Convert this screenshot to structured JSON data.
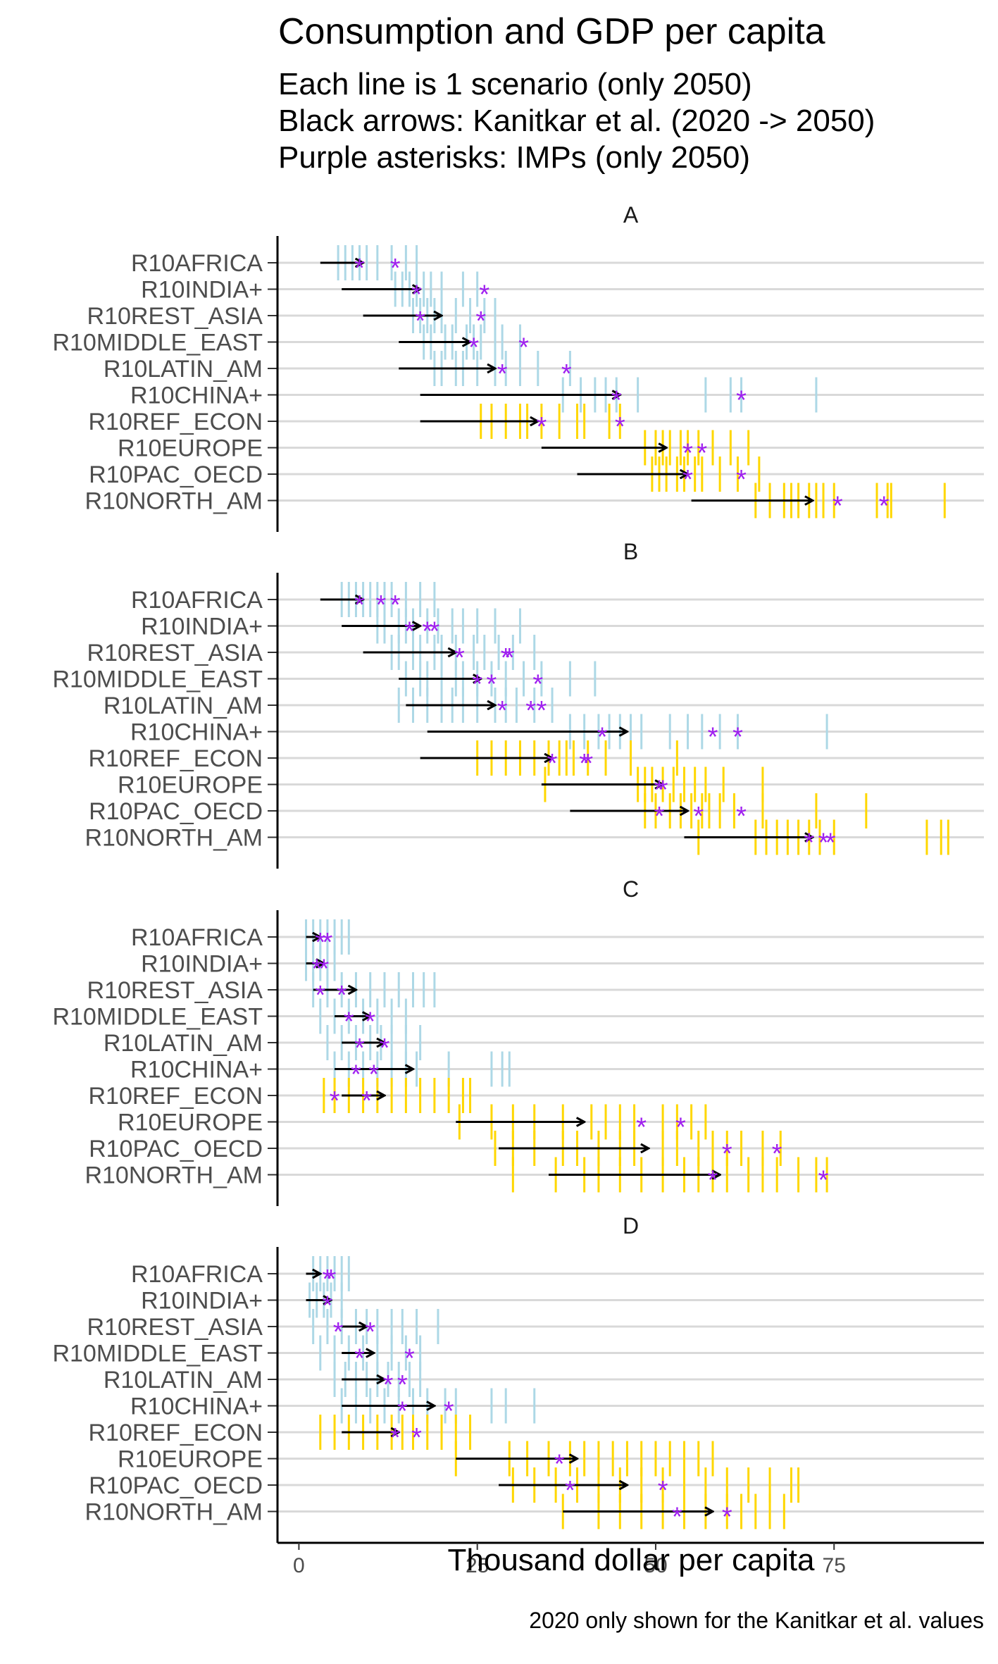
{
  "chart_data": {
    "type": "faceted_range_plot",
    "title": "Consumption and GDP per capita",
    "subtitle_lines": [
      "Each line is 1 scenario (only 2050)",
      "Black arrows: Kanitkar et al. (2020 -> 2050)",
      "Purple asterisks: IMPs (only 2050)"
    ],
    "xlabel": "Thousand dollar per capita",
    "caption": "2020 only shown for the Kanitkar et al. values",
    "xlim": [
      -3,
      96
    ],
    "xticks": [
      0,
      25,
      50,
      75
    ],
    "grid": "horizontal",
    "colors": {
      "non_oecd": "#add8e6",
      "oecd_ref": "#ffd700",
      "arrow": "#000000",
      "imp": "#a020f0",
      "gridline": "#d9d9d9"
    },
    "regions": [
      "R10AFRICA",
      "R10INDIA+",
      "R10REST_ASIA",
      "R10MIDDLE_EAST",
      "R10LATIN_AM",
      "R10CHINA+",
      "R10REF_ECON",
      "R10EUROPE",
      "R10PAC_OECD",
      "R10NORTH_AM"
    ],
    "region_color_group": [
      "non_oecd",
      "non_oecd",
      "non_oecd",
      "non_oecd",
      "non_oecd",
      "non_oecd",
      "oecd_ref",
      "oecd_ref",
      "oecd_ref",
      "oecd_ref"
    ],
    "panels": [
      {
        "label": "A",
        "scenarios": [
          [
            5.5,
            6.5,
            7.5,
            8.5,
            9.5,
            11,
            13,
            15,
            16.5
          ],
          [
            13.5,
            14.5,
            15.5,
            16.5,
            17.5,
            18.5,
            20,
            23,
            25
          ],
          [
            16,
            17,
            18,
            19,
            20,
            22,
            24,
            26,
            27.5
          ],
          [
            17.5,
            18.5,
            20.5,
            21.5,
            23.5,
            24.5,
            25.5,
            27.5,
            28.5,
            31
          ],
          [
            19,
            20,
            22,
            23,
            25,
            27.5,
            29,
            31,
            33.5,
            38
          ],
          [
            37,
            39.5,
            41.5,
            43,
            44.5,
            47.5,
            57,
            60.5,
            62,
            72.5
          ],
          [
            25.5,
            27,
            29,
            31,
            32,
            34,
            36.5,
            39,
            40,
            43.5,
            45
          ],
          [
            48.5,
            50,
            51,
            52,
            53.5,
            54.5,
            56,
            58,
            60.5,
            63
          ],
          [
            49.5,
            50.5,
            51.5,
            53,
            54,
            55.5,
            56.5,
            59,
            61.5,
            64.5
          ],
          [
            64,
            66,
            68,
            69,
            70,
            71.5,
            72.5,
            73.5,
            75,
            81,
            82.5,
            83,
            90.5
          ]
        ],
        "kanitkar_2020": [
          3,
          6,
          9,
          14,
          14,
          17,
          17,
          34,
          39,
          55
        ],
        "kanitkar_2050": [
          9,
          17,
          20,
          24,
          27.5,
          45,
          33.5,
          51.5,
          54.5,
          72
        ],
        "imps": [
          [
            8.5,
            13.5
          ],
          [
            16.5,
            26
          ],
          [
            17,
            25.5
          ],
          [
            24.5,
            31.5
          ],
          [
            28.5,
            37.5
          ],
          [
            44.5,
            62
          ],
          [
            34,
            45
          ],
          [
            54.5,
            56.5
          ],
          [
            54.5,
            62
          ],
          [
            75.5,
            82
          ]
        ]
      },
      {
        "label": "B",
        "scenarios": [
          [
            6,
            7,
            8,
            9,
            10,
            11,
            12,
            13,
            15,
            17,
            19
          ],
          [
            11,
            12,
            14,
            15,
            16,
            18,
            19.5,
            21.5,
            23,
            25,
            27.5,
            31
          ],
          [
            13,
            14,
            16,
            17,
            19,
            20,
            22,
            24.5,
            26,
            28,
            30,
            33
          ],
          [
            15,
            17,
            18,
            20,
            22,
            23,
            25,
            27,
            29,
            31.5,
            34,
            38,
            41.5
          ],
          [
            14,
            16,
            18,
            20,
            21.5,
            23,
            25,
            27.5,
            29,
            30.5,
            33,
            35.5
          ],
          [
            38,
            40,
            42,
            43.5,
            45,
            46.5,
            48,
            52,
            54.5,
            56.5,
            59,
            61.5,
            74
          ],
          [
            25,
            27,
            29,
            31,
            33,
            35,
            36.5,
            37.5,
            38.5,
            40.5,
            43,
            46.5,
            53
          ],
          [
            34.5,
            47.5,
            48.5,
            49.5,
            51,
            52.5,
            54,
            55.5,
            57,
            59.5,
            65
          ],
          [
            48.5,
            50,
            52,
            53.5,
            55,
            56.5,
            57.5,
            59,
            61,
            65,
            72.5,
            79.5
          ],
          [
            56,
            64,
            65.5,
            67,
            68.5,
            70,
            71.5,
            73,
            75,
            88,
            90,
            91
          ]
        ],
        "kanitkar_2020": [
          3,
          6,
          9,
          14,
          15,
          18,
          17,
          34,
          38,
          54
        ],
        "kanitkar_2050": [
          9,
          17,
          22,
          25.5,
          27.5,
          46,
          35.5,
          51,
          54.5,
          72
        ],
        "imps": [
          [
            8.5,
            11.5,
            13.5
          ],
          [
            15.5,
            18,
            19
          ],
          [
            22.5,
            29,
            29.5
          ],
          [
            25,
            27,
            33.5
          ],
          [
            28.5,
            32.5,
            34
          ],
          [
            42.5,
            58,
            61.5
          ],
          [
            35.5,
            40,
            40.5
          ],
          [
            50.5,
            51
          ],
          [
            50.5,
            56,
            62
          ],
          [
            71.5,
            73.5,
            74.5
          ]
        ]
      },
      {
        "label": "C",
        "scenarios": [
          [
            1,
            2,
            3,
            4,
            5,
            6,
            7
          ],
          [
            1,
            2,
            3,
            4,
            5
          ],
          [
            2,
            4,
            6,
            8,
            10,
            12,
            14,
            16,
            17.5,
            19
          ],
          [
            3,
            5,
            7,
            9,
            11,
            13,
            15
          ],
          [
            4,
            6,
            8,
            10,
            11.5,
            13,
            15,
            17
          ],
          [
            5,
            7,
            9,
            11,
            13,
            15,
            16.5,
            21,
            27,
            28.5,
            29.5
          ],
          [
            3.5,
            5,
            7,
            9,
            11,
            13,
            15,
            17,
            19,
            21,
            23,
            24
          ],
          [
            22.5,
            27,
            30,
            33,
            37,
            41,
            43,
            45,
            47,
            51,
            53,
            55,
            57
          ],
          [
            27.5,
            30,
            33,
            37,
            39,
            42,
            45,
            47,
            51,
            53,
            56,
            58,
            60,
            62,
            65,
            67.5
          ],
          [
            30,
            36,
            40,
            42,
            45,
            48,
            51,
            54,
            56,
            58,
            60,
            63,
            65,
            67,
            70,
            72.5,
            74
          ]
        ],
        "kanitkar_2020": [
          1,
          1,
          2,
          5,
          6,
          5,
          6,
          22,
          28,
          35
        ],
        "kanitkar_2050": [
          3,
          3.5,
          8,
          10,
          12,
          16,
          12,
          40,
          49,
          59
        ],
        "imps": [
          [
            3,
            4
          ],
          [
            2.5,
            3.5
          ],
          [
            3,
            6
          ],
          [
            7,
            10
          ],
          [
            8.5,
            12
          ],
          [
            8,
            10.5
          ],
          [
            5,
            9.5
          ],
          [
            48,
            53.5
          ],
          [
            60,
            67
          ],
          [
            58,
            73.5
          ]
        ]
      },
      {
        "label": "D",
        "scenarios": [
          [
            2,
            3,
            4,
            5,
            6,
            7
          ],
          [
            1.5,
            2.5,
            3.5,
            4.5,
            6
          ],
          [
            2,
            4,
            6,
            8,
            9.5,
            11,
            13,
            14.5,
            16.5,
            19.5
          ],
          [
            3,
            5,
            7,
            9,
            11,
            13,
            15,
            17
          ],
          [
            5,
            6.5,
            8,
            9.5,
            11,
            12.5,
            14,
            15.5,
            17
          ],
          [
            6,
            8,
            10,
            12,
            14,
            16,
            18,
            20.5,
            22,
            27,
            29,
            33
          ],
          [
            3,
            5,
            7,
            9,
            11,
            13,
            14.5,
            16,
            18,
            20,
            22,
            24
          ],
          [
            22,
            29.5,
            32,
            35,
            38,
            40,
            42,
            44,
            46,
            48,
            50,
            52,
            54,
            56,
            58
          ],
          [
            30,
            33,
            36,
            39,
            42,
            45,
            48,
            51,
            54,
            57,
            60,
            63,
            66,
            69,
            70
          ],
          [
            37,
            42,
            45,
            48,
            51,
            54,
            57,
            60,
            62,
            64,
            66,
            68
          ]
        ],
        "kanitkar_2020": [
          1,
          1,
          6,
          6,
          6,
          6,
          6,
          22,
          28,
          37
        ],
        "kanitkar_2050": [
          3,
          4.5,
          9.5,
          10.5,
          12,
          19,
          14,
          39,
          46,
          58
        ],
        "imps": [
          [
            4,
            4.5
          ],
          [
            4
          ],
          [
            5.5,
            10
          ],
          [
            8.5,
            15.5
          ],
          [
            12.5,
            14.5
          ],
          [
            14.5,
            21
          ],
          [
            13.5,
            16.5
          ],
          [
            36.5
          ],
          [
            38,
            51
          ],
          [
            53,
            60
          ]
        ]
      }
    ]
  }
}
